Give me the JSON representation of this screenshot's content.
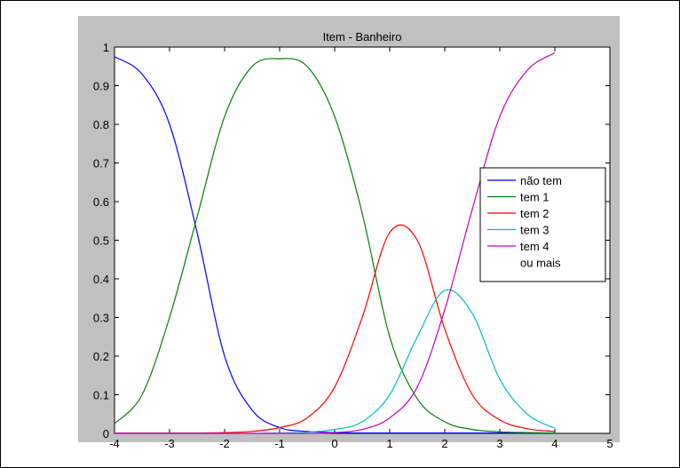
{
  "chart_data": {
    "type": "line",
    "title": "Item - Banheiro",
    "xlabel": "",
    "ylabel": "",
    "xlim": [
      -4,
      5
    ],
    "ylim": [
      0,
      1
    ],
    "xticks": [
      "-4",
      "-3",
      "-2",
      "-1",
      "0",
      "1",
      "2",
      "3",
      "4",
      "5"
    ],
    "yticks": [
      "0",
      "0.1",
      "0.2",
      "0.3",
      "0.4",
      "0.5",
      "0.6",
      "0.7",
      "0.8",
      "0.9",
      "1"
    ],
    "grid": false,
    "legend_position": "right",
    "x": [
      -4,
      -3.5,
      -3,
      -2.5,
      -2,
      -1.5,
      -1,
      -0.5,
      0,
      0.5,
      1,
      1.5,
      2,
      2.5,
      3,
      3.5,
      4
    ],
    "series": [
      {
        "name": "não tem",
        "color": "#0000ff",
        "values": [
          0.975,
          0.93,
          0.8,
          0.52,
          0.2,
          0.06,
          0.015,
          0.005,
          0.002,
          0.001,
          0.001,
          0.001,
          0.001,
          0.001,
          0.001,
          0.001,
          0.001
        ]
      },
      {
        "name": "tem 1",
        "color": "#008000",
        "values": [
          0.025,
          0.1,
          0.3,
          0.56,
          0.82,
          0.95,
          0.97,
          0.95,
          0.82,
          0.57,
          0.25,
          0.09,
          0.03,
          0.01,
          0.004,
          0.002,
          0.001
        ]
      },
      {
        "name": "tem 2",
        "color": "#ff0000",
        "values": [
          0.001,
          0.001,
          0.001,
          0.001,
          0.002,
          0.005,
          0.015,
          0.04,
          0.12,
          0.3,
          0.52,
          0.5,
          0.27,
          0.1,
          0.035,
          0.012,
          0.005
        ]
      },
      {
        "name": "tem 3",
        "color": "#00bfbf",
        "values": [
          0,
          0,
          0,
          0,
          0,
          0,
          0.001,
          0.003,
          0.01,
          0.03,
          0.1,
          0.25,
          0.37,
          0.31,
          0.14,
          0.05,
          0.013
        ]
      },
      {
        "name": "tem 4\nou mais",
        "color": "#bf00bf",
        "values": [
          0,
          0,
          0,
          0,
          0,
          0,
          0,
          0,
          0.002,
          0.01,
          0.04,
          0.12,
          0.32,
          0.58,
          0.82,
          0.94,
          0.985
        ]
      }
    ]
  }
}
